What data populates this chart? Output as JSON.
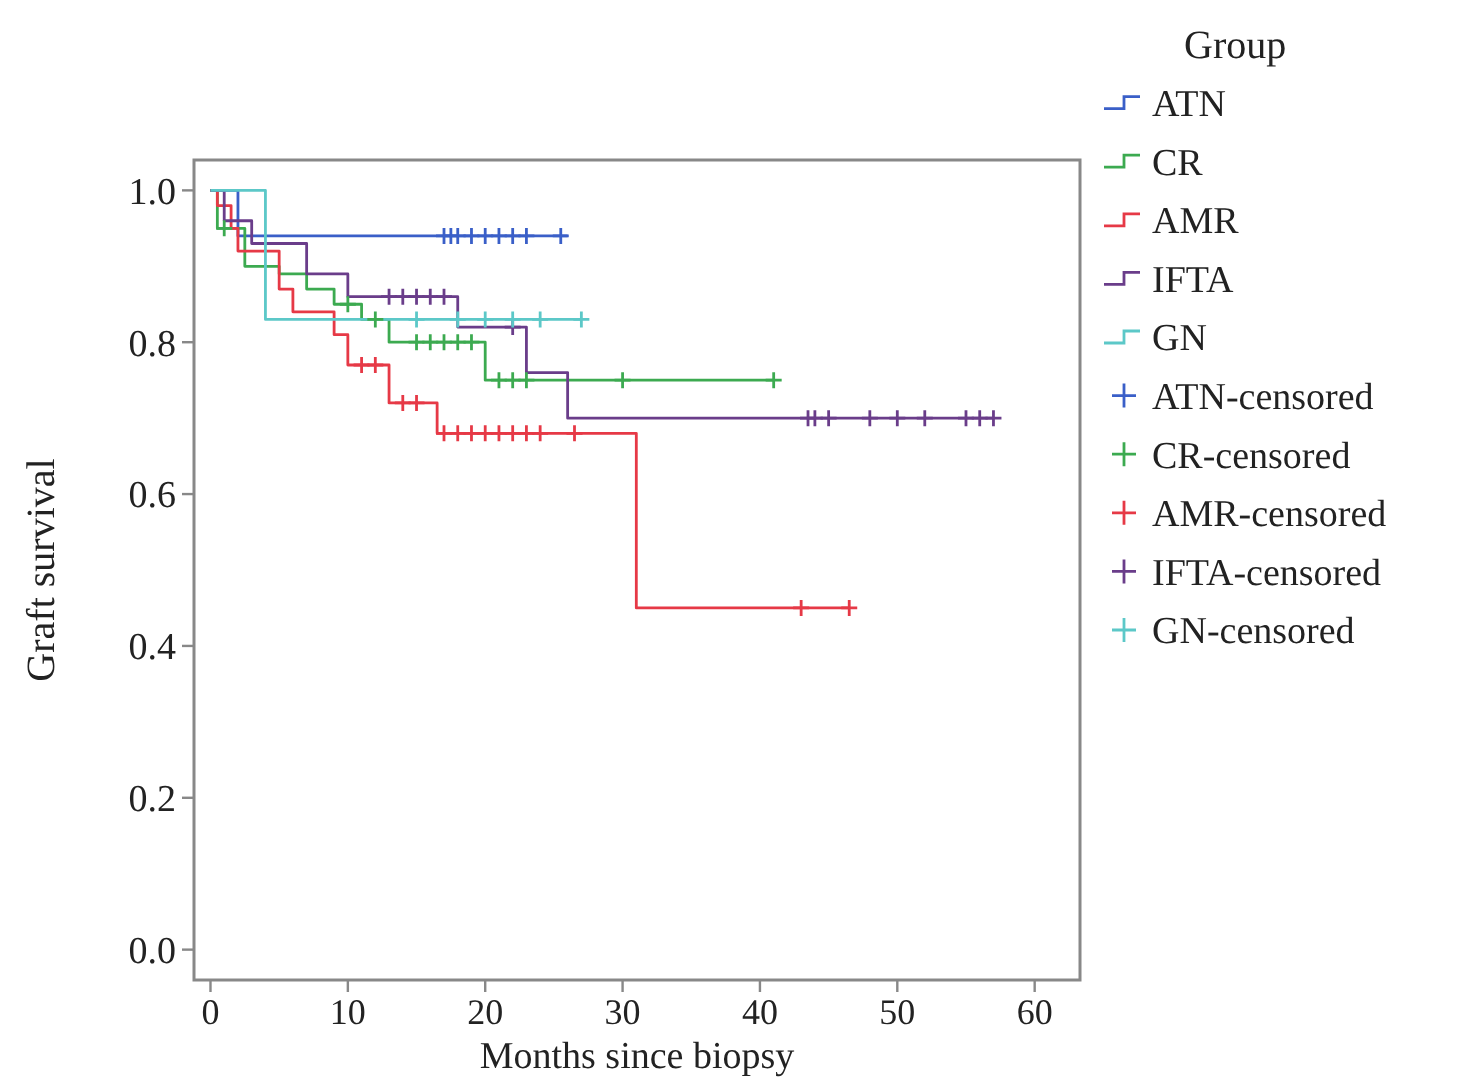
{
  "chart_data": {
    "type": "step",
    "xlabel": "Months since biopsy",
    "ylabel": "Graft survival",
    "legend_title": "Group",
    "legend": "right",
    "grid": false,
    "xlim": [
      -1.2,
      63.3
    ],
    "ylim": [
      -0.04,
      1.04
    ],
    "xticks": [
      0,
      10,
      20,
      30,
      40,
      50,
      60
    ],
    "yticks": [
      {
        "value": 0,
        "label": "0.0"
      },
      0.2,
      0.4,
      0.6,
      0.8,
      {
        "value": 1,
        "label": "1.0"
      }
    ],
    "series": [
      {
        "name": "ATN",
        "color": "#3a5fc8",
        "x": [
          0,
          2,
          26
        ],
        "values": [
          1,
          0.94,
          0.94
        ]
      },
      {
        "name": "CR",
        "color": "#3caa50",
        "x": [
          0,
          0.5,
          2.5,
          5,
          7,
          9,
          11,
          13,
          20,
          41
        ],
        "values": [
          1,
          0.95,
          0.9,
          0.89,
          0.87,
          0.85,
          0.83,
          0.8,
          0.75,
          0.75
        ]
      },
      {
        "name": "AMR",
        "color": "#e63946",
        "x": [
          0,
          0.5,
          1.5,
          2,
          5,
          6,
          9,
          10,
          13,
          16.5,
          31,
          46.5
        ],
        "values": [
          1,
          0.98,
          0.95,
          0.92,
          0.87,
          0.84,
          0.81,
          0.77,
          0.72,
          0.68,
          0.45,
          0.45
        ]
      },
      {
        "name": "IFTA",
        "color": "#6a3d8a",
        "x": [
          0,
          1,
          3,
          7,
          10,
          18,
          23,
          26,
          57
        ],
        "values": [
          1,
          0.96,
          0.93,
          0.89,
          0.86,
          0.82,
          0.76,
          0.7,
          0.7
        ]
      },
      {
        "name": "GN",
        "color": "#5cc8c8",
        "x": [
          0,
          4,
          27
        ],
        "values": [
          1,
          0.83,
          0.83
        ]
      },
      {
        "name": "ATN-censored",
        "type": "scatter",
        "marker": "cross",
        "color": "#3a5fc8",
        "x": [
          17,
          17.5,
          18,
          19,
          20,
          21,
          22,
          23,
          25.5
        ],
        "values": [
          0.94,
          0.94,
          0.94,
          0.94,
          0.94,
          0.94,
          0.94,
          0.94,
          0.94
        ]
      },
      {
        "name": "CR-censored",
        "type": "scatter",
        "marker": "cross",
        "color": "#3caa50",
        "x": [
          1,
          10,
          12,
          15,
          16,
          17,
          18,
          19,
          21,
          22,
          23,
          30,
          41
        ],
        "values": [
          0.95,
          0.85,
          0.83,
          0.8,
          0.8,
          0.8,
          0.8,
          0.8,
          0.75,
          0.75,
          0.75,
          0.75,
          0.75
        ]
      },
      {
        "name": "AMR-censored",
        "type": "scatter",
        "marker": "cross",
        "color": "#e63946",
        "x": [
          11,
          12,
          14,
          15,
          17,
          18,
          19,
          20,
          21,
          22,
          23,
          24,
          26.5,
          43,
          46.5
        ],
        "values": [
          0.77,
          0.77,
          0.72,
          0.72,
          0.68,
          0.68,
          0.68,
          0.68,
          0.68,
          0.68,
          0.68,
          0.68,
          0.68,
          0.45,
          0.45
        ]
      },
      {
        "name": "IFTA-censored",
        "type": "scatter",
        "marker": "cross",
        "color": "#6a3d8a",
        "x": [
          13,
          14,
          15,
          16,
          17,
          22,
          43.5,
          44,
          45,
          48,
          50,
          52,
          55,
          56,
          57
        ],
        "values": [
          0.86,
          0.86,
          0.86,
          0.86,
          0.86,
          0.82,
          0.7,
          0.7,
          0.7,
          0.7,
          0.7,
          0.7,
          0.7,
          0.7,
          0.7
        ]
      },
      {
        "name": "GN-censored",
        "type": "scatter",
        "marker": "cross",
        "color": "#5cc8c8",
        "x": [
          15,
          18,
          20,
          22,
          24,
          27
        ],
        "values": [
          0.83,
          0.83,
          0.83,
          0.83,
          0.83,
          0.83
        ]
      }
    ]
  }
}
